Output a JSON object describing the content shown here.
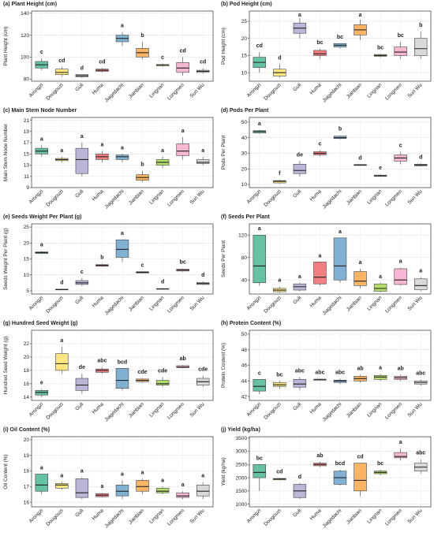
{
  "chart_data": [
    {
      "type": "box",
      "title": "(a) Plant Height (cm)",
      "y_label": "Plant Height (cm)",
      "categories": [
        "Arongzi",
        "Dougouzi",
        "Guli",
        "Huma",
        "Jiagedachi",
        "Jianbian",
        "Lingnan",
        "Longmen",
        "Sun Wu"
      ],
      "colors": [
        "#66c2a5",
        "#ffe680",
        "#bcb5d8",
        "#f08080",
        "#80b1d3",
        "#fdb462",
        "#b3de69",
        "#f7b6d2",
        "#d9d9d9"
      ],
      "ylim": [
        78,
        142
      ],
      "yticks": [
        80,
        100,
        120,
        140
      ],
      "grid": true,
      "min": [
        88,
        82,
        81,
        86,
        110,
        98,
        91,
        83,
        85
      ],
      "q1": [
        90,
        84,
        82,
        87,
        114,
        100,
        92,
        86,
        86
      ],
      "median": [
        93,
        86,
        83,
        88,
        117,
        104,
        93,
        90,
        87
      ],
      "q3": [
        96,
        89,
        84,
        89,
        120,
        108,
        93,
        95,
        88
      ],
      "max": [
        99,
        91,
        84,
        90,
        123,
        114,
        94,
        100,
        90
      ],
      "letters": [
        "c",
        "cd",
        "d",
        "cd",
        "a",
        "b",
        "c",
        "cd",
        "cd"
      ]
    },
    {
      "type": "box",
      "title": "(b) Pod Height (cm)",
      "y_label": "Pod Height (cm)",
      "categories": [
        "Arongzi",
        "Dougouzi",
        "Guli",
        "Huma",
        "Jiagedachi",
        "Jianbian",
        "Lingnan",
        "Longmen",
        "Sun Wu"
      ],
      "colors": [
        "#66c2a5",
        "#ffe680",
        "#bcb5d8",
        "#f08080",
        "#80b1d3",
        "#fdb462",
        "#b3de69",
        "#f7b6d2",
        "#d9d9d9"
      ],
      "ylim": [
        7.5,
        28
      ],
      "yticks": [
        10,
        15,
        20,
        25
      ],
      "grid": true,
      "min": [
        10,
        8.5,
        20,
        14,
        17,
        19.5,
        14.5,
        14,
        14
      ],
      "q1": [
        11.5,
        9,
        21.5,
        15,
        17.5,
        21,
        14.8,
        15,
        15
      ],
      "median": [
        13,
        10,
        23,
        15.5,
        18,
        22.5,
        15,
        16,
        17
      ],
      "q3": [
        14.5,
        11,
        24.5,
        16.5,
        18.5,
        24,
        15.3,
        17.5,
        20
      ],
      "max": [
        16,
        12.5,
        26,
        17,
        18.5,
        25.5,
        15.5,
        19,
        22
      ],
      "letters": [
        "cd",
        "d",
        "a",
        "bc",
        "bc",
        "a",
        "bc",
        "bc",
        "b"
      ]
    },
    {
      "type": "box",
      "title": "(c) Main Stem Node Number",
      "y_label": "Main Stem Node Number",
      "categories": [
        "Arongzi",
        "Dougouzi",
        "Guli",
        "Huma",
        "Jiagedachi",
        "Jianbian",
        "Lingnan",
        "Longmen",
        "Sun Wu"
      ],
      "colors": [
        "#66c2a5",
        "#ffe680",
        "#bcb5d8",
        "#f08080",
        "#80b1d3",
        "#fdb462",
        "#b3de69",
        "#f7b6d2",
        "#d9d9d9"
      ],
      "ylim": [
        9,
        21.5
      ],
      "yticks": [
        9,
        11,
        13,
        15,
        17,
        19,
        21
      ],
      "grid": true,
      "min": [
        14.5,
        13.5,
        11,
        13.5,
        13.5,
        10,
        12.5,
        14,
        13
      ],
      "q1": [
        15,
        13.8,
        11.5,
        14,
        14,
        10.3,
        13,
        14.7,
        13.3
      ],
      "median": [
        15.5,
        14,
        14,
        14.5,
        14.5,
        10.8,
        13.5,
        15.5,
        13.5
      ],
      "q3": [
        16,
        14.2,
        16,
        15,
        14.8,
        11.3,
        14,
        16.8,
        14
      ],
      "max": [
        16.5,
        14.5,
        17,
        15.5,
        15,
        12,
        14.5,
        18,
        14.5
      ],
      "letters": [
        "a",
        "a",
        "a",
        "a",
        "a",
        "b",
        "a",
        "a",
        "a"
      ]
    },
    {
      "type": "box",
      "title": "(d) Pods Per Plant",
      "y_label": "Pods Per Plant",
      "categories": [
        "Arongzi",
        "Dougouzi",
        "Guli",
        "Huma",
        "Jiagedachi",
        "Jianbian",
        "Lingnan",
        "Longmen",
        "Sun Wu"
      ],
      "colors": [
        "#66c2a5",
        "#ffe680",
        "#bcb5d8",
        "#f08080",
        "#80b1d3",
        "#fdb462",
        "#b3de69",
        "#f7b6d2",
        "#d9d9d9"
      ],
      "ylim": [
        8,
        53
      ],
      "yticks": [
        10,
        20,
        30,
        40,
        50
      ],
      "grid": true,
      "min": [
        42.5,
        10.5,
        15,
        28,
        39,
        22,
        15,
        23,
        21.5
      ],
      "q1": [
        43,
        11,
        17,
        29,
        39.5,
        22.2,
        15.3,
        25,
        22
      ],
      "median": [
        44,
        12,
        19,
        30,
        40,
        22.5,
        15.5,
        27,
        22.5
      ],
      "q3": [
        44.5,
        12.5,
        23,
        31,
        41,
        22.8,
        16,
        29,
        23
      ],
      "max": [
        45,
        13,
        25,
        32,
        41.5,
        23,
        16.5,
        31,
        23.5
      ],
      "letters": [
        "a",
        "f",
        "de",
        "c",
        "b",
        "d",
        "e",
        "c",
        "d"
      ]
    },
    {
      "type": "box",
      "title": "(e) Seeds Weight Per Plant (g)",
      "y_label": "Seeds Weight Per Plant (g)",
      "categories": [
        "Arongzi",
        "Dougouzi",
        "Guli",
        "Huma",
        "Jiagedachi",
        "Jianbian",
        "Lingnan",
        "Longmen",
        "Sun Wu"
      ],
      "colors": [
        "#66c2a5",
        "#ffe680",
        "#bcb5d8",
        "#f08080",
        "#80b1d3",
        "#fdb462",
        "#b3de69",
        "#f7b6d2",
        "#d9d9d9"
      ],
      "ylim": [
        4,
        26
      ],
      "yticks": [
        5,
        10,
        15,
        20,
        25
      ],
      "grid": true,
      "min": [
        16.5,
        5.2,
        6.5,
        12.5,
        14,
        10.5,
        5.4,
        11,
        6.8
      ],
      "q1": [
        16.7,
        5.3,
        7,
        12.7,
        15.5,
        10.6,
        5.5,
        11.2,
        7
      ],
      "median": [
        17,
        5.4,
        7.5,
        13,
        18,
        10.8,
        5.6,
        11.5,
        7.3
      ],
      "q3": [
        17.2,
        5.5,
        8.2,
        13.2,
        21,
        11,
        5.7,
        11.8,
        7.6
      ],
      "max": [
        17.5,
        5.6,
        9,
        13.5,
        21,
        11,
        5.8,
        12,
        8
      ],
      "letters": [
        "a",
        "d",
        "c",
        "b",
        "a",
        "c",
        "d",
        "bc",
        "d"
      ]
    },
    {
      "type": "box",
      "title": "(f) Seeds Per Plant",
      "y_label": "Seeds Per Plant",
      "categories": [
        "Arongzi",
        "Dougouzi",
        "Guli",
        "Huma",
        "Jiagedachi",
        "Jianbian",
        "Lingnan",
        "Longmen",
        "Sun Wu"
      ],
      "colors": [
        "#66c2a5",
        "#ffe680",
        "#bcb5d8",
        "#f08080",
        "#80b1d3",
        "#fdb462",
        "#b3de69",
        "#f7b6d2",
        "#d9d9d9"
      ],
      "ylim": [
        15,
        140
      ],
      "yticks": [
        40,
        80,
        120
      ],
      "grid": true,
      "min": [
        30,
        17,
        20,
        30,
        35,
        25,
        18,
        30,
        20
      ],
      "q1": [
        35,
        19,
        22,
        33,
        40,
        30,
        20,
        32,
        23
      ],
      "median": [
        65,
        22,
        28,
        45,
        65,
        38,
        25,
        40,
        30
      ],
      "q3": [
        120,
        25,
        33,
        72,
        115,
        55,
        33,
        60,
        42
      ],
      "max": [
        120,
        28,
        35,
        72,
        115,
        60,
        35,
        62,
        45
      ],
      "letters": [
        "a",
        "a",
        "a",
        "a",
        "a",
        "a",
        "a",
        "a",
        "a"
      ]
    },
    {
      "type": "box",
      "title": "(g) Hundred Seed Weight (g)",
      "y_label": "Hundred Seed Weight (g)",
      "categories": [
        "Arongzi",
        "Dougouzi",
        "Guli",
        "Huma",
        "Jiagedachi",
        "Jianbian",
        "Lingnan",
        "Longmen",
        "Sun Wu"
      ],
      "colors": [
        "#66c2a5",
        "#ffe680",
        "#bcb5d8",
        "#f08080",
        "#80b1d3",
        "#fdb462",
        "#b3de69",
        "#f7b6d2",
        "#d9d9d9"
      ],
      "ylim": [
        13.5,
        24
      ],
      "yticks": [
        14,
        16,
        18,
        20,
        22
      ],
      "grid": true,
      "min": [
        14,
        17.5,
        14.5,
        17.5,
        15,
        16.2,
        15.5,
        18.3,
        15.5
      ],
      "q1": [
        14.3,
        18,
        15,
        17.7,
        15.3,
        16.3,
        15.8,
        18.4,
        15.8
      ],
      "median": [
        14.7,
        19,
        15.8,
        18,
        16.5,
        16.5,
        16,
        18.5,
        16.3
      ],
      "q3": [
        15,
        20.5,
        16.8,
        18.2,
        18.3,
        16.7,
        16.5,
        18.7,
        16.8
      ],
      "max": [
        15.2,
        21.5,
        17.5,
        18.5,
        18.3,
        16.8,
        17,
        18.8,
        17.2
      ],
      "letters": [
        "e",
        "a",
        "de",
        "abc",
        "bcd",
        "cde",
        "cde",
        "ab",
        "cde"
      ]
    },
    {
      "type": "box",
      "title": "(h) Protein Content (%)",
      "y_label": "Protein Content (%)",
      "categories": [
        "Arongzi",
        "Dougouzi",
        "Guli",
        "Huma",
        "Jiagedachi",
        "Jianbian",
        "Lingnan",
        "Longmen",
        "Sun Wu"
      ],
      "colors": [
        "#66c2a5",
        "#ffe680",
        "#bcb5d8",
        "#f08080",
        "#80b1d3",
        "#fdb462",
        "#b3de69",
        "#f7b6d2",
        "#d9d9d9"
      ],
      "ylim": [
        41.5,
        50.5
      ],
      "yticks": [
        42,
        44,
        46,
        48,
        50
      ],
      "grid": true,
      "min": [
        42.3,
        43,
        42.8,
        44.1,
        43.6,
        43.8,
        44,
        44,
        43.4
      ],
      "q1": [
        42.7,
        43.3,
        43.2,
        44.1,
        43.8,
        44,
        44.2,
        44.2,
        43.6
      ],
      "median": [
        43.3,
        43.5,
        43.6,
        44.2,
        44,
        44.3,
        44.5,
        44.4,
        43.8
      ],
      "q3": [
        44.2,
        43.8,
        44.2,
        44.2,
        44.1,
        44.6,
        44.7,
        44.6,
        44
      ],
      "max": [
        44.2,
        44,
        44.5,
        44.3,
        44.3,
        44.8,
        44.9,
        44.8,
        44.2
      ],
      "letters": [
        "c",
        "bc",
        "abc",
        "abc",
        "abc",
        "ab",
        "a",
        "ab",
        "abc"
      ]
    },
    {
      "type": "box",
      "title": "(i) Oil Content (%)",
      "y_label": "Oil Content (%)",
      "categories": [
        "Arongzi",
        "Dougouzi",
        "Guli",
        "Huma",
        "Jiagedachi",
        "Jianbian",
        "Lingnan",
        "Longmen",
        "Sun Wu"
      ],
      "colors": [
        "#66c2a5",
        "#ffe680",
        "#bcb5d8",
        "#f08080",
        "#80b1d3",
        "#fdb462",
        "#b3de69",
        "#f7b6d2",
        "#d9d9d9"
      ],
      "ylim": [
        15.7,
        20.2
      ],
      "yticks": [
        16,
        17,
        18,
        19,
        20
      ],
      "grid": true,
      "min": [
        16.5,
        16.8,
        16.2,
        16.3,
        16.2,
        16.5,
        16.5,
        16.2,
        16.2
      ],
      "q1": [
        16.7,
        16.9,
        16.3,
        16.35,
        16.4,
        16.7,
        16.6,
        16.3,
        16.4
      ],
      "median": [
        17.1,
        17.1,
        16.6,
        16.45,
        16.7,
        17,
        16.7,
        16.4,
        16.7
      ],
      "q3": [
        17.8,
        17.2,
        17.5,
        16.55,
        17.1,
        17.4,
        16.9,
        16.6,
        17.1
      ],
      "max": [
        17.8,
        17.3,
        17.6,
        16.6,
        17.4,
        17.5,
        17,
        16.7,
        17.3
      ],
      "letters": [
        "a",
        "a",
        "a",
        "a",
        "a",
        "a",
        "a",
        "a",
        "a"
      ]
    },
    {
      "type": "box",
      "title": "(j) Yield (kg/ha)",
      "y_label": "Yield (kg/ha)",
      "categories": [
        "Arongzi",
        "Dougouzi",
        "Guli",
        "Huma",
        "Jiagedachi",
        "Jianbian",
        "Lingnan",
        "Longmen",
        "Sun Wu"
      ],
      "colors": [
        "#66c2a5",
        "#ffe680",
        "#bcb5d8",
        "#f08080",
        "#80b1d3",
        "#fdb462",
        "#b3de69",
        "#f7b6d2",
        "#d9d9d9"
      ],
      "ylim": [
        900,
        3550
      ],
      "yticks": [
        1000,
        1500,
        2000,
        2500,
        3000,
        3500
      ],
      "grid": true,
      "min": [
        1500,
        1900,
        1200,
        2400,
        1700,
        1300,
        2100,
        2650,
        2150
      ],
      "q1": [
        2000,
        1920,
        1250,
        2450,
        1750,
        1500,
        2150,
        2750,
        2250
      ],
      "median": [
        2200,
        1950,
        1500,
        2500,
        2000,
        1900,
        2200,
        2800,
        2400
      ],
      "q3": [
        2500,
        1970,
        1750,
        2550,
        2250,
        2550,
        2250,
        2950,
        2550
      ],
      "max": [
        2500,
        1980,
        1800,
        2600,
        2300,
        2550,
        2300,
        3100,
        2700
      ],
      "letters": [
        "bc",
        "cd",
        "d",
        "ab",
        "bcd",
        "cd",
        "bc",
        "a",
        "abc"
      ]
    }
  ]
}
